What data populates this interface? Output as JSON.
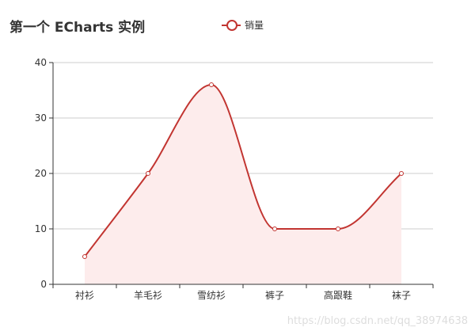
{
  "chart_data": {
    "type": "area",
    "title": "第一个 ECharts 实例",
    "categories": [
      "衬衫",
      "羊毛衫",
      "雪纺衫",
      "裤子",
      "高跟鞋",
      "袜子"
    ],
    "series": [
      {
        "name": "销量",
        "values": [
          5,
          20,
          36,
          10,
          10,
          20
        ],
        "smooth": true
      }
    ],
    "ylim": [
      0,
      40
    ],
    "yticks": [
      0,
      10,
      20,
      30,
      40
    ],
    "grid": "horizontal",
    "legend_position": "top-center",
    "colors": {
      "line": "#c23531",
      "area": "#fdecec",
      "axis": "#333333",
      "grid": "#cccccc"
    }
  },
  "watermark": "https://blog.csdn.net/qq_38974638"
}
